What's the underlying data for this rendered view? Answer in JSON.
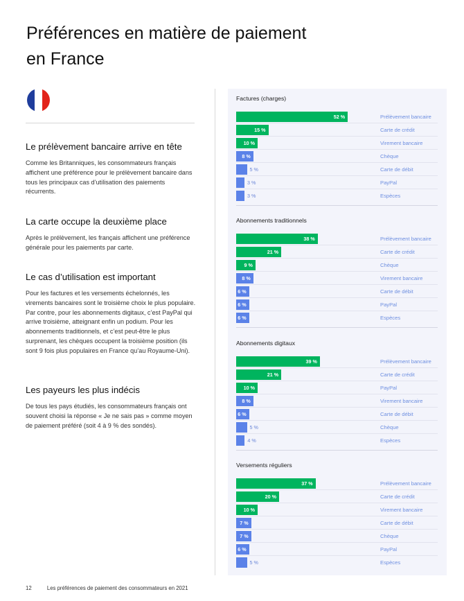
{
  "title_line1": "Préférences en matière de paiement",
  "title_line2": "en France",
  "flag": {
    "icon": "france-flag-icon",
    "colors": [
      "#1f3d9c",
      "#ffffff",
      "#e2231a"
    ]
  },
  "sections": [
    {
      "heading": "Le prélèvement bancaire arrive en tête",
      "body": "Comme les Britanniques, les consommateurs français affichent une préférence pour le prélèvement bancaire dans tous les principaux cas d’utilisation des paiements récurrents."
    },
    {
      "heading": "La carte occupe la deuxième place",
      "body": "Après le prélèvement, les français affichent une préférence générale pour les paiements par carte."
    },
    {
      "heading": "Le cas d’utilisation est important",
      "body": "Pour les factures et les versements échelonnés, les virements bancaires sont le troisième choix le plus populaire. Par contre, pour les abonnements digitaux, c’est PayPal qui arrive troisième, atteignant enfin un podium. Pour les abonnements traditionnels, et c’est peut-être le plus surprenant, les chèques occupent la troisième position (ils sont 9 fois plus populaires en France qu’au Royaume-Uni)."
    },
    {
      "heading": "Les payeurs les plus indécis",
      "body": "De tous les pays étudiés, les consommateurs français ont souvent choisi la réponse « Je ne sais pas » comme moyen de paiement préféré (soit 4 à 9 % des sondés)."
    }
  ],
  "footer": {
    "page": "12",
    "text": "Les préférences de paiement des consommateurs en 2021"
  },
  "colors": {
    "green": "#00b45e",
    "blue": "#5b82e8",
    "label": "#6e8fe0",
    "panel": "#f3f4fb"
  },
  "chart_data": [
    {
      "type": "bar",
      "title": "Factures (charges)",
      "categories": [
        "Prélèvement bancaire",
        "Carte de crédit",
        "Virement bancaire",
        "Chèque",
        "Carte de débit",
        "PayPal",
        "Espèces"
      ],
      "values": [
        52,
        15,
        10,
        8,
        5,
        3,
        3
      ],
      "value_labels": [
        "52 %",
        "15 %",
        "10 %",
        "8 %",
        "5 %",
        "3 %",
        "3 %"
      ]
    },
    {
      "type": "bar",
      "title": "Abonnements traditionnels",
      "categories": [
        "Prélèvement bancaire",
        "Carte de crédit",
        "Chèque",
        "Virement bancaire",
        "Carte de débit",
        "PayPal",
        "Espèces"
      ],
      "values": [
        38,
        21,
        9,
        8,
        6,
        6,
        6
      ],
      "value_labels": [
        "38 %",
        "21 %",
        "9 %",
        "8 %",
        "6 %",
        "6 %",
        "6 %"
      ]
    },
    {
      "type": "bar",
      "title": "Abonnements digitaux",
      "categories": [
        "Prélèvement bancaire",
        "Carte de crédit",
        "PayPal",
        "Virement bancaire",
        "Carte de débit",
        "Chèque",
        "Espèces"
      ],
      "values": [
        39,
        21,
        10,
        8,
        6,
        5,
        4
      ],
      "value_labels": [
        "39 %",
        "21 %",
        "10 %",
        "8 %",
        "6 %",
        "5 %",
        "4 %"
      ]
    },
    {
      "type": "bar",
      "title": "Versements réguliers",
      "categories": [
        "Prélèvement bancaire",
        "Carte de crédit",
        "Virement bancaire",
        "Carte de débit",
        "Chèque",
        "PayPal",
        "Espèces"
      ],
      "values": [
        37,
        20,
        10,
        7,
        7,
        6,
        5
      ],
      "value_labels": [
        "37 %",
        "20 %",
        "10 %",
        "7 %",
        "7 %",
        "6 %",
        "5 %"
      ]
    }
  ]
}
